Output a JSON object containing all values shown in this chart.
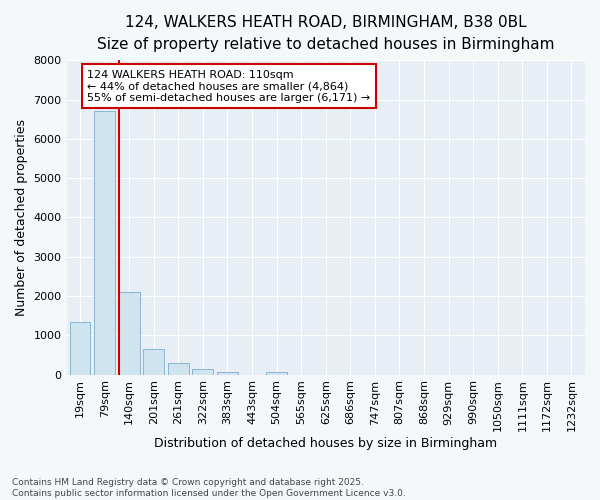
{
  "title_line1": "124, WALKERS HEATH ROAD, BIRMINGHAM, B38 0BL",
  "title_line2": "Size of property relative to detached houses in Birmingham",
  "xlabel": "Distribution of detached houses by size in Birmingham",
  "ylabel": "Number of detached properties",
  "categories": [
    "19sqm",
    "79sqm",
    "140sqm",
    "201sqm",
    "261sqm",
    "322sqm",
    "383sqm",
    "443sqm",
    "504sqm",
    "565sqm",
    "625sqm",
    "686sqm",
    "747sqm",
    "807sqm",
    "868sqm",
    "929sqm",
    "990sqm",
    "1050sqm",
    "1111sqm",
    "1172sqm",
    "1232sqm"
  ],
  "values": [
    1350,
    6700,
    2100,
    650,
    300,
    150,
    60,
    0,
    60,
    0,
    0,
    0,
    0,
    0,
    0,
    0,
    0,
    0,
    0,
    0,
    0
  ],
  "bar_color": "#d0e4f0",
  "bar_edge_color": "#8ab4d0",
  "vline_color": "#cc0000",
  "vline_pos": 1.58,
  "annotation_text": "124 WALKERS HEATH ROAD: 110sqm\n← 44% of detached houses are smaller (4,864)\n55% of semi-detached houses are larger (6,171) →",
  "annotation_box_color": "white",
  "annotation_box_edge_color": "#cc0000",
  "ylim": [
    0,
    8000
  ],
  "yticks": [
    0,
    1000,
    2000,
    3000,
    4000,
    5000,
    6000,
    7000,
    8000
  ],
  "footnote": "Contains HM Land Registry data © Crown copyright and database right 2025.\nContains public sector information licensed under the Open Government Licence v3.0.",
  "bg_color": "#f5f8fb",
  "plot_bg_color": "#e8eef5",
  "grid_color": "#ffffff",
  "title_fontsize": 11,
  "subtitle_fontsize": 10,
  "axis_label_fontsize": 9,
  "tick_fontsize": 8,
  "annot_fontsize": 8
}
